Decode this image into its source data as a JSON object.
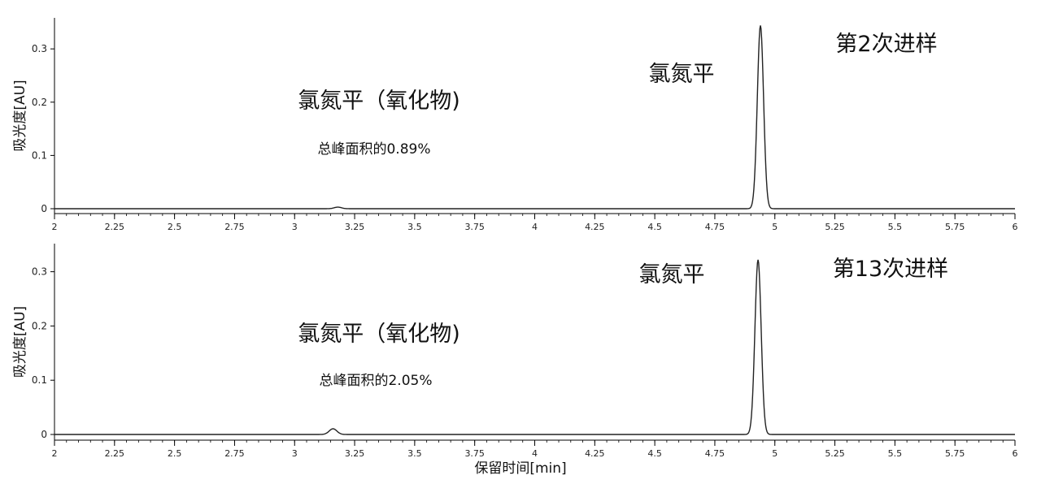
{
  "xlabel": "保留时间[min]",
  "chart_data": [
    {
      "type": "line",
      "title": "",
      "xlabel": "",
      "ylabel": "吸光度[AU]",
      "xlim": [
        2,
        6
      ],
      "ylim": [
        -0.01,
        0.34
      ],
      "grid": false,
      "x_ticks": [
        2,
        2.25,
        2.5,
        2.75,
        3,
        3.25,
        3.5,
        3.75,
        4,
        4.25,
        4.5,
        4.75,
        5,
        5.25,
        5.5,
        5.75,
        6
      ],
      "x_tick_labels": [
        "2",
        "2.25",
        "2.5",
        "2.75",
        "3",
        "3.25",
        "3.5",
        "3.75",
        "4",
        "4.25",
        "4.5",
        "4.75",
        "5",
        "5.25",
        "5.5",
        "5.75",
        "6"
      ],
      "y_ticks": [
        0,
        0.1,
        0.2,
        0.3
      ],
      "y_tick_labels": [
        "0",
        "0.1",
        "0.2",
        "0.3"
      ],
      "series": [
        {
          "baseline": 0.0,
          "peaks": [
            {
              "rt": 3.18,
              "height": 0.003,
              "width": 0.015
            },
            {
              "rt": 4.94,
              "height": 0.344,
              "width": 0.013
            }
          ]
        }
      ],
      "annotations": [
        {
          "id": "oxide",
          "text": "氯氮平（氧化物)"
        },
        {
          "id": "area",
          "text": "总峰面积的0.89%"
        },
        {
          "id": "main",
          "text": "氯氮平"
        },
        {
          "id": "injection",
          "text": "第2次进样"
        }
      ]
    },
    {
      "type": "line",
      "title": "",
      "xlabel": "保留时间[min]",
      "ylabel": "吸光度[AU]",
      "xlim": [
        2,
        6
      ],
      "ylim": [
        -0.01,
        0.34
      ],
      "grid": false,
      "x_ticks": [
        2,
        2.25,
        2.5,
        2.75,
        3,
        3.25,
        3.5,
        3.75,
        4,
        4.25,
        4.5,
        4.75,
        5,
        5.25,
        5.5,
        5.75,
        6
      ],
      "x_tick_labels": [
        "2",
        "2.25",
        "2.5",
        "2.75",
        "3",
        "3.25",
        "3.5",
        "3.75",
        "4",
        "4.25",
        "4.5",
        "4.75",
        "5",
        "5.25",
        "5.5",
        "5.75",
        "6"
      ],
      "y_ticks": [
        0,
        0.1,
        0.2,
        0.3
      ],
      "y_tick_labels": [
        "0",
        "0.1",
        "0.2",
        "0.3"
      ],
      "series": [
        {
          "baseline": 0.0,
          "peaks": [
            {
              "rt": 3.16,
              "height": 0.0105,
              "width": 0.016
            },
            {
              "rt": 4.93,
              "height": 0.322,
              "width": 0.013
            }
          ]
        }
      ],
      "annotations": [
        {
          "id": "oxide",
          "text": "氯氮平（氧化物)"
        },
        {
          "id": "area",
          "text": "总峰面积的2.05%"
        },
        {
          "id": "main",
          "text": "氯氮平"
        },
        {
          "id": "injection",
          "text": "第13次进样"
        }
      ]
    }
  ]
}
